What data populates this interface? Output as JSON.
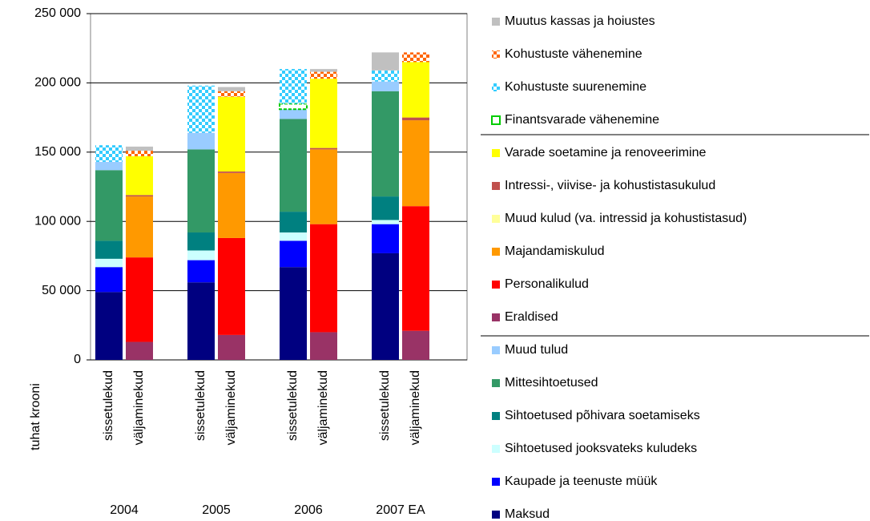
{
  "chart_data": {
    "type": "stacked_bar",
    "groups": [
      "2004",
      "2005",
      "2006",
      "2007 EA"
    ],
    "categories": [
      "sissetulekud",
      "väljaminekud",
      "sissetulekud",
      "väljaminekud",
      "sissetulekud",
      "väljaminekud",
      "sissetulekud",
      "väljaminekud"
    ],
    "y_label": "tuhat krooni",
    "ylim": [
      0,
      250000
    ],
    "yticks": [
      {
        "value": 0,
        "label": "0"
      },
      {
        "value": 50000,
        "label": "50 000"
      },
      {
        "value": 100000,
        "label": "100 000"
      },
      {
        "value": 150000,
        "label": "150 000"
      },
      {
        "value": 200000,
        "label": "200 000"
      },
      {
        "value": 250000,
        "label": "250 000"
      }
    ],
    "grid": true,
    "legend": "right",
    "series": [
      {
        "name": "Muutus kassas ja hoiustes",
        "color": "#c0c0c0",
        "values": [
          0,
          3000,
          0,
          3000,
          0,
          2000,
          13000,
          0
        ]
      },
      {
        "name": "Kohustuste vähenemine",
        "color": "#ff6600",
        "pattern": "checker",
        "values": [
          null,
          4000,
          null,
          4000,
          null,
          5000,
          null,
          7000
        ]
      },
      {
        "name": "Kohustuste suurenemine",
        "color": "#33ccff",
        "pattern": "checker",
        "values": [
          12000,
          null,
          34000,
          null,
          25000,
          null,
          8000,
          null
        ]
      },
      {
        "name": "Finantsvarade vähenemine",
        "color": "#00cc00",
        "pattern": "outline",
        "values": [
          0,
          null,
          0,
          null,
          4000,
          null,
          0,
          null
        ]
      },
      {
        "name": "Varade soetamine ja renoveerimine",
        "color": "#ffff00",
        "values": [
          null,
          28000,
          null,
          54000,
          null,
          50000,
          null,
          40000
        ]
      },
      {
        "name": "Intressi-, viivise- ja kohustistasukulud",
        "color": "#c0504d",
        "values": [
          null,
          1000,
          null,
          1000,
          null,
          1000,
          null,
          2000
        ]
      },
      {
        "name": "Muud kulud (va. intressid ja kohustistasud)",
        "color": "#ffff99",
        "values": [
          null,
          0,
          null,
          0,
          null,
          0,
          null,
          0
        ]
      },
      {
        "name": "Majandamiskulud",
        "color": "#ff9900",
        "values": [
          null,
          44000,
          null,
          47000,
          null,
          54000,
          null,
          62000
        ]
      },
      {
        "name": "Personalikulud",
        "color": "#ff0000",
        "values": [
          null,
          61000,
          null,
          70000,
          null,
          78000,
          null,
          90000
        ]
      },
      {
        "name": "Eraldised",
        "color": "#993366",
        "values": [
          null,
          13000,
          null,
          18000,
          null,
          20000,
          null,
          21000
        ]
      },
      {
        "name": "Muud tulud",
        "color": "#99ccff",
        "values": [
          6000,
          null,
          12000,
          null,
          7000,
          null,
          7000,
          null
        ]
      },
      {
        "name": "Mittesihtoetused",
        "color": "#339966",
        "values": [
          51000,
          null,
          60000,
          null,
          67000,
          null,
          76000,
          null
        ]
      },
      {
        "name": "Sihtoetused põhivara soetamiseks",
        "color": "#008080",
        "values": [
          13000,
          null,
          13000,
          null,
          15000,
          null,
          17000,
          null
        ]
      },
      {
        "name": "Sihtoetused jooksvateks kuludeks",
        "color": "#ccffff",
        "values": [
          6000,
          null,
          7000,
          null,
          6000,
          null,
          3000,
          null
        ]
      },
      {
        "name": "Kaupade ja teenuste müük",
        "color": "#0000ff",
        "values": [
          18000,
          null,
          16000,
          null,
          19000,
          null,
          21000,
          null
        ]
      },
      {
        "name": "Maksud",
        "color": "#000080",
        "values": [
          49000,
          null,
          56000,
          null,
          67000,
          null,
          77000,
          null
        ]
      }
    ]
  }
}
